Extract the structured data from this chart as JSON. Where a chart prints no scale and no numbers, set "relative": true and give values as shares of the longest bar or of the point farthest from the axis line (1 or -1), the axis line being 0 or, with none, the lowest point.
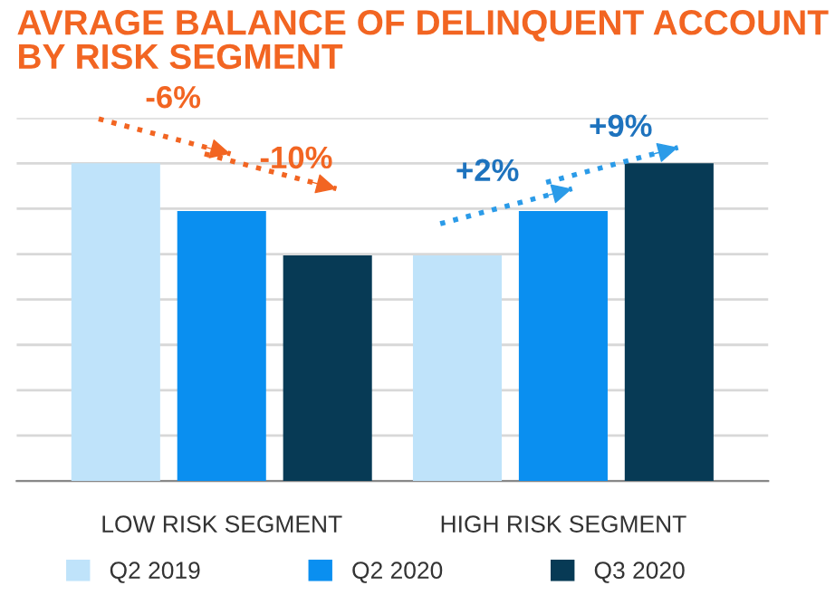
{
  "chart_data": {
    "type": "bar",
    "title": "AVRAGE BALANCE OF DELINQUENT ACCOUNT\nBY RISK SEGMENT",
    "categories": [
      "LOW RISK SEGMENT",
      "HIGH RISK SEGMENT"
    ],
    "series": [
      {
        "name": "Q2 2019",
        "color": "#bfe3fa",
        "values": [
          1,
          0.71
        ]
      },
      {
        "name": "Q2 2020",
        "color": "#0a8ff0",
        "values": [
          0.85,
          0.85
        ]
      },
      {
        "name": "Q3 2020",
        "color": "#073a55",
        "values": [
          0.71,
          1
        ]
      }
    ],
    "relative": true,
    "grid": "y",
    "legend": "bottom",
    "annotations": [
      "-6%",
      "-10%",
      "+2%",
      "+9%"
    ]
  }
}
